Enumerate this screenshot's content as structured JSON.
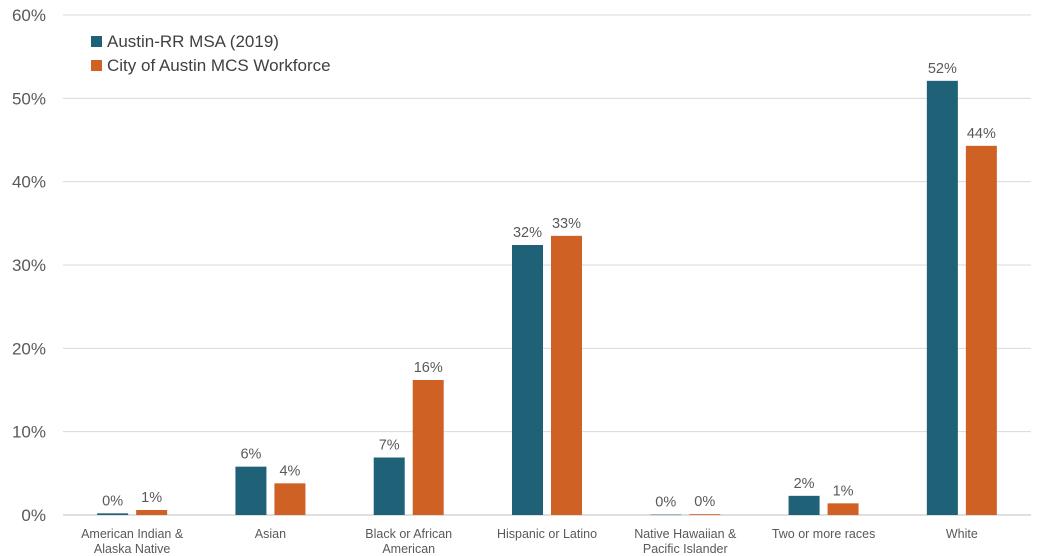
{
  "chart_data": {
    "type": "bar",
    "categories": [
      [
        "American Indian &",
        "Alaska Native"
      ],
      [
        "Asian"
      ],
      [
        "Black or African",
        "American"
      ],
      [
        "Hispanic or Latino"
      ],
      [
        "Native Hawaiian &",
        "Pacific Islander"
      ],
      [
        "Two or more races"
      ],
      [
        "White"
      ]
    ],
    "series": [
      {
        "name": "Austin-RR MSA (2019)",
        "color": "#1f6176",
        "values": [
          0.2,
          5.8,
          6.9,
          32.4,
          0.05,
          2.3,
          52.1
        ],
        "labels": [
          "0%",
          "6%",
          "7%",
          "32%",
          "0%",
          "2%",
          "52%"
        ]
      },
      {
        "name": "City of Austin MCS Workforce",
        "color": "#d06125",
        "values": [
          0.6,
          3.8,
          16.2,
          33.5,
          0.1,
          1.4,
          44.3
        ],
        "labels": [
          "1%",
          "4%",
          "16%",
          "33%",
          "0%",
          "1%",
          "44%"
        ]
      }
    ],
    "y_ticks": [
      "0%",
      "10%",
      "20%",
      "30%",
      "40%",
      "50%",
      "60%"
    ],
    "ylim": [
      0,
      60
    ],
    "grid": true,
    "legend_position": "top-left",
    "title": "",
    "xlabel": "",
    "ylabel": ""
  }
}
